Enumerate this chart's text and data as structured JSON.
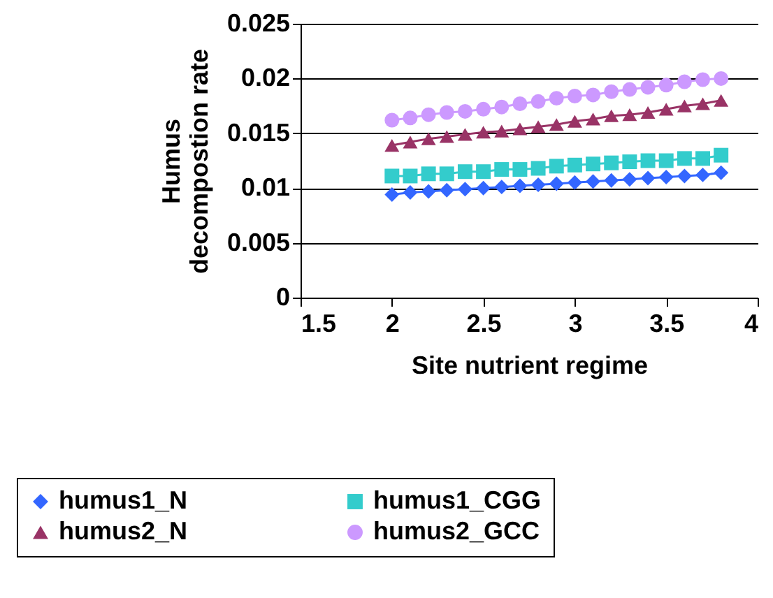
{
  "chart_data": {
    "type": "line",
    "xlabel": "Site nutrient regime",
    "ylabel": "Humus\ndecompostion rate",
    "x": [
      2,
      2.1,
      2.2,
      2.3,
      2.4,
      2.5,
      2.6,
      2.7,
      2.8,
      2.9,
      3,
      3.1,
      3.2,
      3.3,
      3.4,
      3.5,
      3.6,
      3.7,
      3.8
    ],
    "series": [
      {
        "name": "humus1_N",
        "color": "#3366ff",
        "marker": "diamond",
        "values": [
          0.0094,
          0.0096,
          0.0097,
          0.0098,
          0.0099,
          0.01,
          0.0101,
          0.0102,
          0.0103,
          0.0104,
          0.0105,
          0.0106,
          0.0107,
          0.0108,
          0.0109,
          0.011,
          0.0111,
          0.0112,
          0.0114
        ]
      },
      {
        "name": "humus1_CGG",
        "color": "#33cccc",
        "marker": "square",
        "values": [
          0.0111,
          0.0111,
          0.0113,
          0.0113,
          0.0115,
          0.0115,
          0.0117,
          0.0117,
          0.0118,
          0.012,
          0.0121,
          0.0122,
          0.0123,
          0.0124,
          0.0125,
          0.0125,
          0.0127,
          0.0127,
          0.013
        ]
      },
      {
        "name": "humus2_N",
        "color": "#993366",
        "marker": "triangle",
        "values": [
          0.0139,
          0.0142,
          0.0145,
          0.0147,
          0.0149,
          0.0151,
          0.0152,
          0.0154,
          0.0156,
          0.0158,
          0.0161,
          0.0163,
          0.0166,
          0.0167,
          0.0169,
          0.0172,
          0.0175,
          0.0177,
          0.018
        ]
      },
      {
        "name": "humus2_GCC",
        "color": "#cc99ff",
        "marker": "circle",
        "values": [
          0.0162,
          0.0164,
          0.0167,
          0.0169,
          0.017,
          0.0172,
          0.0174,
          0.0177,
          0.0179,
          0.0182,
          0.0184,
          0.0185,
          0.0188,
          0.019,
          0.0192,
          0.0194,
          0.0197,
          0.0199,
          0.02
        ]
      }
    ],
    "xlim": [
      1.5,
      4
    ],
    "xticks": [
      1.5,
      2,
      2.5,
      3,
      3.5,
      4
    ],
    "ylim": [
      0,
      0.025
    ],
    "yticks": [
      0,
      0.005,
      0.01,
      0.015,
      0.02,
      0.025
    ],
    "grid": "y",
    "legend": "bottom"
  }
}
